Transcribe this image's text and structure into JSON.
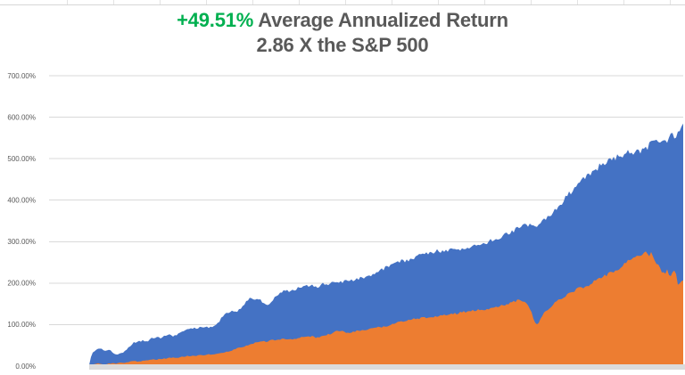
{
  "title": {
    "line1_highlight": "+49.51%",
    "line1_rest": " Average Annualized Return",
    "line2": "2.86 X the S&P 500",
    "highlight_color": "#00B050",
    "text_color": "#595959"
  },
  "chart_data": {
    "type": "area",
    "title": "+49.51% Average Annualized Return",
    "subtitle": "2.86 X the S&P 500",
    "ylim": [
      0,
      700
    ],
    "y_ticks": [
      700,
      600,
      500,
      400,
      300,
      200,
      100,
      0
    ],
    "y_tick_labels": [
      "700.00%",
      "600.00%",
      "500.00%",
      "400.00%",
      "300.00%",
      "200.00%",
      "100.00%",
      "0.00%"
    ],
    "x_axis_labels": "none",
    "grid": "horizontal",
    "legend": "none",
    "gridline_color": "#D9D9D9",
    "baseline_strip_color": "#DBDBDB",
    "background": "#FFFFFF",
    "series": [
      {
        "name": "portfolio-cumulative-return",
        "color": "#4472C4",
        "points": [
          [
            100,
            3
          ],
          [
            102,
            22
          ],
          [
            104,
            32
          ],
          [
            108,
            40
          ],
          [
            113,
            43
          ],
          [
            118,
            36
          ],
          [
            123,
            41
          ],
          [
            127,
            32
          ],
          [
            131,
            26
          ],
          [
            136,
            31
          ],
          [
            141,
            38
          ],
          [
            146,
            48
          ],
          [
            150,
            56
          ],
          [
            155,
            60
          ],
          [
            160,
            61
          ],
          [
            165,
            58
          ],
          [
            170,
            67
          ],
          [
            175,
            70
          ],
          [
            180,
            68
          ],
          [
            185,
            72
          ],
          [
            190,
            75
          ],
          [
            195,
            72
          ],
          [
            200,
            79
          ],
          [
            205,
            84
          ],
          [
            210,
            88
          ],
          [
            215,
            90
          ],
          [
            220,
            92
          ],
          [
            225,
            94
          ],
          [
            230,
            95
          ],
          [
            235,
            92
          ],
          [
            240,
            99
          ],
          [
            245,
            106
          ],
          [
            250,
            120
          ],
          [
            255,
            128
          ],
          [
            260,
            132
          ],
          [
            265,
            130
          ],
          [
            270,
            140
          ],
          [
            275,
            152
          ],
          [
            280,
            163
          ],
          [
            285,
            158
          ],
          [
            290,
            162
          ],
          [
            295,
            152
          ],
          [
            300,
            147
          ],
          [
            305,
            155
          ],
          [
            310,
            170
          ],
          [
            315,
            177
          ],
          [
            320,
            182
          ],
          [
            325,
            180
          ],
          [
            330,
            185
          ],
          [
            335,
            188
          ],
          [
            340,
            190
          ],
          [
            345,
            193
          ],
          [
            350,
            195
          ],
          [
            355,
            190
          ],
          [
            360,
            196
          ],
          [
            365,
            200
          ],
          [
            370,
            198
          ],
          [
            375,
            202
          ],
          [
            380,
            200
          ],
          [
            385,
            205
          ],
          [
            390,
            208
          ],
          [
            395,
            205
          ],
          [
            400,
            210
          ],
          [
            405,
            212
          ],
          [
            410,
            215
          ],
          [
            415,
            218
          ],
          [
            420,
            222
          ],
          [
            425,
            228
          ],
          [
            430,
            235
          ],
          [
            435,
            239
          ],
          [
            440,
            245
          ],
          [
            445,
            250
          ],
          [
            450,
            253
          ],
          [
            455,
            252
          ],
          [
            460,
            258
          ],
          [
            465,
            262
          ],
          [
            470,
            267
          ],
          [
            475,
            270
          ],
          [
            480,
            272
          ],
          [
            485,
            275
          ],
          [
            490,
            278
          ],
          [
            495,
            276
          ],
          [
            500,
            280
          ],
          [
            505,
            280
          ],
          [
            510,
            281
          ],
          [
            515,
            282
          ],
          [
            520,
            284
          ],
          [
            525,
            286
          ],
          [
            530,
            288
          ],
          [
            535,
            290
          ],
          [
            540,
            294
          ],
          [
            545,
            298
          ],
          [
            550,
            303
          ],
          [
            555,
            305
          ],
          [
            560,
            310
          ],
          [
            565,
            315
          ],
          [
            570,
            320
          ],
          [
            575,
            326
          ],
          [
            580,
            334
          ],
          [
            585,
            339
          ],
          [
            590,
            341
          ],
          [
            595,
            342
          ],
          [
            600,
            336
          ],
          [
            605,
            345
          ],
          [
            610,
            355
          ],
          [
            615,
            362
          ],
          [
            620,
            370
          ],
          [
            625,
            380
          ],
          [
            630,
            395
          ],
          [
            635,
            408
          ],
          [
            640,
            420
          ],
          [
            645,
            428
          ],
          [
            650,
            440
          ],
          [
            655,
            452
          ],
          [
            660,
            460
          ],
          [
            665,
            468
          ],
          [
            670,
            478
          ],
          [
            675,
            487
          ],
          [
            680,
            492
          ],
          [
            685,
            498
          ],
          [
            690,
            502
          ],
          [
            695,
            505
          ],
          [
            700,
            510
          ],
          [
            705,
            515
          ],
          [
            710,
            517
          ],
          [
            715,
            515
          ],
          [
            720,
            520
          ],
          [
            725,
            528
          ],
          [
            730,
            535
          ],
          [
            735,
            540
          ],
          [
            740,
            545
          ],
          [
            745,
            540
          ],
          [
            750,
            550
          ],
          [
            755,
            558
          ],
          [
            758,
            552
          ],
          [
            762,
            570
          ],
          [
            766,
            585
          ]
        ]
      },
      {
        "name": "sp500-cumulative-return",
        "color": "#ED7D31",
        "points": [
          [
            100,
            1
          ],
          [
            105,
            4
          ],
          [
            110,
            6
          ],
          [
            115,
            4
          ],
          [
            120,
            5
          ],
          [
            125,
            7
          ],
          [
            130,
            6
          ],
          [
            135,
            8
          ],
          [
            140,
            7
          ],
          [
            145,
            10
          ],
          [
            150,
            12
          ],
          [
            155,
            11
          ],
          [
            160,
            13
          ],
          [
            165,
            14
          ],
          [
            170,
            16
          ],
          [
            175,
            15
          ],
          [
            180,
            17
          ],
          [
            185,
            18
          ],
          [
            190,
            20
          ],
          [
            195,
            20
          ],
          [
            200,
            21
          ],
          [
            205,
            23
          ],
          [
            210,
            24
          ],
          [
            215,
            24
          ],
          [
            220,
            25
          ],
          [
            225,
            26
          ],
          [
            230,
            27
          ],
          [
            235,
            28
          ],
          [
            240,
            29
          ],
          [
            245,
            30
          ],
          [
            250,
            32
          ],
          [
            255,
            35
          ],
          [
            260,
            38
          ],
          [
            265,
            42
          ],
          [
            270,
            45
          ],
          [
            275,
            48
          ],
          [
            280,
            52
          ],
          [
            285,
            55
          ],
          [
            290,
            58
          ],
          [
            295,
            59
          ],
          [
            300,
            60
          ],
          [
            305,
            62
          ],
          [
            310,
            64
          ],
          [
            315,
            65
          ],
          [
            320,
            66
          ],
          [
            325,
            66
          ],
          [
            330,
            66
          ],
          [
            335,
            68
          ],
          [
            340,
            70
          ],
          [
            345,
            71
          ],
          [
            350,
            72
          ],
          [
            355,
            68
          ],
          [
            360,
            71
          ],
          [
            365,
            74
          ],
          [
            370,
            78
          ],
          [
            375,
            82
          ],
          [
            380,
            85
          ],
          [
            385,
            83
          ],
          [
            390,
            81
          ],
          [
            395,
            82
          ],
          [
            400,
            85
          ],
          [
            405,
            86
          ],
          [
            410,
            88
          ],
          [
            415,
            90
          ],
          [
            420,
            92
          ],
          [
            425,
            93
          ],
          [
            430,
            94
          ],
          [
            435,
            96
          ],
          [
            440,
            100
          ],
          [
            445,
            104
          ],
          [
            450,
            108
          ],
          [
            455,
            110
          ],
          [
            460,
            112
          ],
          [
            465,
            114
          ],
          [
            470,
            115
          ],
          [
            475,
            117
          ],
          [
            480,
            118
          ],
          [
            485,
            119
          ],
          [
            490,
            120
          ],
          [
            495,
            122
          ],
          [
            500,
            124
          ],
          [
            505,
            125
          ],
          [
            510,
            126
          ],
          [
            515,
            128
          ],
          [
            520,
            130
          ],
          [
            525,
            132
          ],
          [
            530,
            133
          ],
          [
            535,
            135
          ],
          [
            540,
            136
          ],
          [
            545,
            137
          ],
          [
            550,
            138
          ],
          [
            555,
            141
          ],
          [
            560,
            144
          ],
          [
            565,
            147
          ],
          [
            570,
            150
          ],
          [
            575,
            154
          ],
          [
            580,
            158
          ],
          [
            583,
            159
          ],
          [
            587,
            157
          ],
          [
            591,
            150
          ],
          [
            595,
            135
          ],
          [
            598,
            115
          ],
          [
            601,
            100
          ],
          [
            604,
            105
          ],
          [
            607,
            118
          ],
          [
            610,
            128
          ],
          [
            613,
            135
          ],
          [
            616,
            140
          ],
          [
            620,
            150
          ],
          [
            625,
            157
          ],
          [
            630,
            163
          ],
          [
            635,
            170
          ],
          [
            640,
            178
          ],
          [
            645,
            183
          ],
          [
            650,
            188
          ],
          [
            655,
            191
          ],
          [
            660,
            195
          ],
          [
            665,
            202
          ],
          [
            670,
            210
          ],
          [
            675,
            215
          ],
          [
            680,
            220
          ],
          [
            685,
            225
          ],
          [
            690,
            230
          ],
          [
            695,
            237
          ],
          [
            700,
            245
          ],
          [
            704,
            252
          ],
          [
            708,
            258
          ],
          [
            712,
            263
          ],
          [
            715,
            265
          ],
          [
            718,
            262
          ],
          [
            721,
            268
          ],
          [
            724,
            280
          ],
          [
            727,
            262
          ],
          [
            730,
            271
          ],
          [
            733,
            258
          ],
          [
            736,
            250
          ],
          [
            739,
            241
          ],
          [
            742,
            228
          ],
          [
            745,
            222
          ],
          [
            748,
            232
          ],
          [
            751,
            216
          ],
          [
            754,
            226
          ],
          [
            757,
            230
          ],
          [
            760,
            196
          ],
          [
            763,
            203
          ],
          [
            766,
            207
          ]
        ]
      }
    ]
  }
}
